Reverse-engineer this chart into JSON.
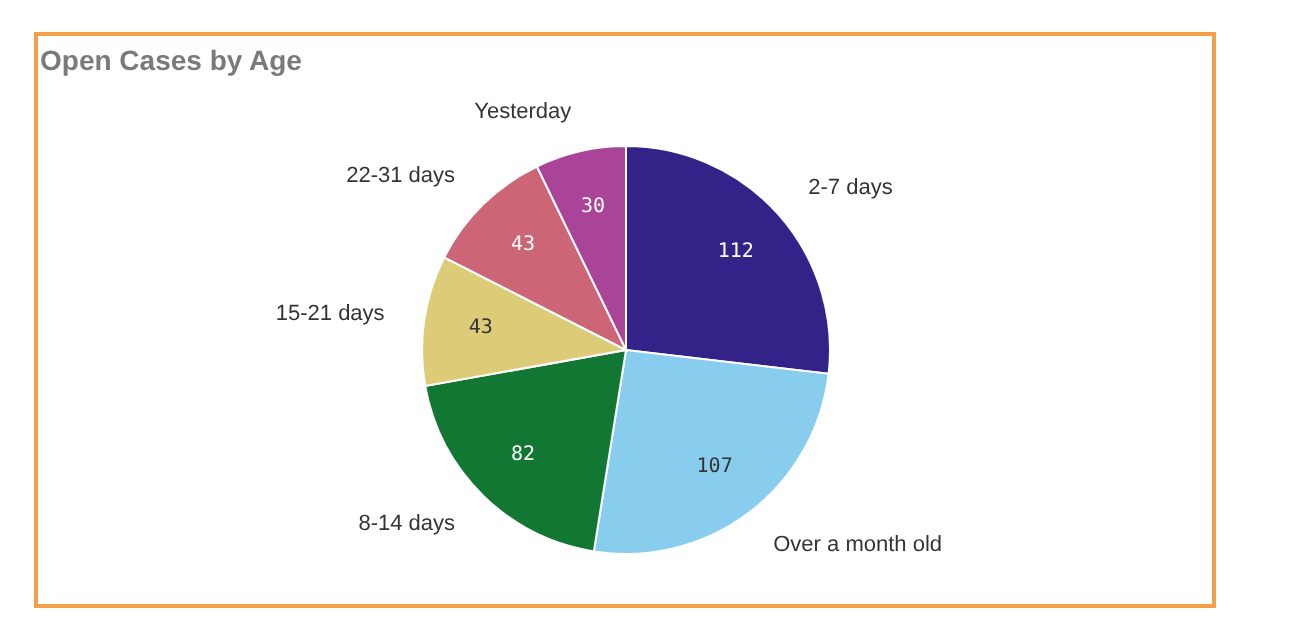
{
  "chart_data": {
    "type": "pie",
    "title": "Open Cases by Age",
    "categories": [
      "2-7 days",
      "Over a month old",
      "8-14 days",
      "15-21 days",
      "22-31 days",
      "Yesterday"
    ],
    "values": [
      112,
      107,
      82,
      43,
      43,
      30
    ],
    "colors": [
      "#332288",
      "#88ccee",
      "#117733",
      "#ddcc77",
      "#cc6677",
      "#aa4499"
    ],
    "data_labels": true
  }
}
